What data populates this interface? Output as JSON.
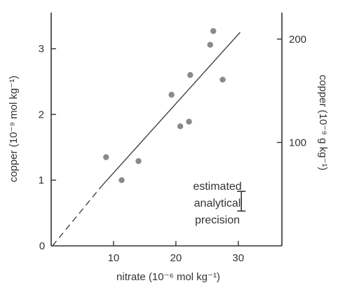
{
  "chart_data": {
    "type": "scatter",
    "xlabel": "nitrate (10⁻⁶ mol kg⁻¹)",
    "ylabel": "copper (10⁻⁹ mol kg⁻¹)",
    "y2label": "copper (10⁻⁹ g kg⁻¹)",
    "xlim": [
      0,
      37
    ],
    "ylim": [
      0,
      3.55
    ],
    "xticks": [
      10,
      20,
      30
    ],
    "yticks": [
      0,
      1,
      2,
      3
    ],
    "y2ticks": [
      100,
      200
    ],
    "origin_label": "0",
    "points": [
      {
        "x": 8.8,
        "y": 1.35
      },
      {
        "x": 11.3,
        "y": 1.0
      },
      {
        "x": 14.0,
        "y": 1.29
      },
      {
        "x": 19.3,
        "y": 2.3
      },
      {
        "x": 20.7,
        "y": 1.82
      },
      {
        "x": 22.1,
        "y": 1.89
      },
      {
        "x": 22.3,
        "y": 2.6
      },
      {
        "x": 25.5,
        "y": 3.06
      },
      {
        "x": 26.0,
        "y": 3.27
      },
      {
        "x": 27.5,
        "y": 2.53
      }
    ],
    "fit_line": {
      "dashed": {
        "x1": 0.2,
        "y1": 0.0,
        "x2": 8.0,
        "y2": 0.9
      },
      "solid": {
        "x1": 8.0,
        "y1": 0.9,
        "x2": 30.3,
        "y2": 3.25
      }
    },
    "precision_bar": {
      "x": 30.5,
      "y_low": 0.53,
      "y_high": 0.83
    },
    "annotation": [
      "estimated",
      "analytical",
      "precision"
    ],
    "colors": {
      "axis": "#333333",
      "points": "#8a8a8a",
      "line": "#444444"
    }
  }
}
